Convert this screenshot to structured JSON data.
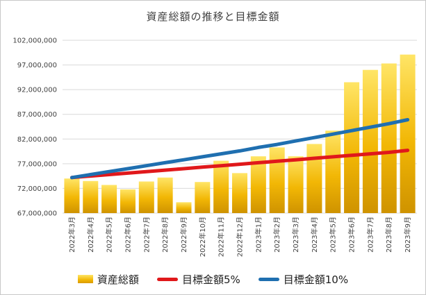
{
  "chart_data": {
    "type": "bar",
    "title": "資産総額の推移と目標金額",
    "categories": [
      "2022年3月",
      "2022年4月",
      "2022年5月",
      "2022年6月",
      "2022年7月",
      "2022年8月",
      "2022年9月",
      "2022年10月",
      "2022年11月",
      "2022年12月",
      "2023年1月",
      "2023年2月",
      "2023年3月",
      "2023年4月",
      "2023年5月",
      "2023年6月",
      "2023年7月",
      "2023年8月",
      "2023年9月"
    ],
    "ylim": [
      67000000,
      102000000
    ],
    "yticks": [
      "102,000,000",
      "97,000,000",
      "92,000,000",
      "87,000,000",
      "82,000,000",
      "77,000,000",
      "72,000,000",
      "67,000,000"
    ],
    "ytick_values": [
      102000000,
      97000000,
      92000000,
      87000000,
      82000000,
      77000000,
      72000000,
      67000000
    ],
    "grid": true,
    "legend_position": "bottom",
    "series": [
      {
        "name": "資産総額",
        "type": "bar",
        "color": "#f2b705",
        "values": [
          74000000,
          73500000,
          72700000,
          71800000,
          73400000,
          74200000,
          69200000,
          73300000,
          77600000,
          75100000,
          78500000,
          80300000,
          78500000,
          81000000,
          83700000,
          93500000,
          96000000,
          97300000,
          99100000
        ]
      },
      {
        "name": "目標金額5%",
        "type": "line",
        "color": "#e0181b",
        "values": [
          74200000,
          74500000,
          74800000,
          75100000,
          75400000,
          75700000,
          76000000,
          76300000,
          76600000,
          76900000,
          77200000,
          77500000,
          77800000,
          78100000,
          78400000,
          78700000,
          79000000,
          79300000,
          79700000
        ]
      },
      {
        "name": "目標金額10%",
        "type": "line",
        "color": "#1f6fb0",
        "values": [
          74200000,
          74800000,
          75400000,
          76000000,
          76600000,
          77200000,
          77800000,
          78400000,
          79000000,
          79600000,
          80300000,
          80900000,
          81600000,
          82300000,
          83000000,
          83700000,
          84400000,
          85100000,
          85900000
        ]
      }
    ]
  }
}
